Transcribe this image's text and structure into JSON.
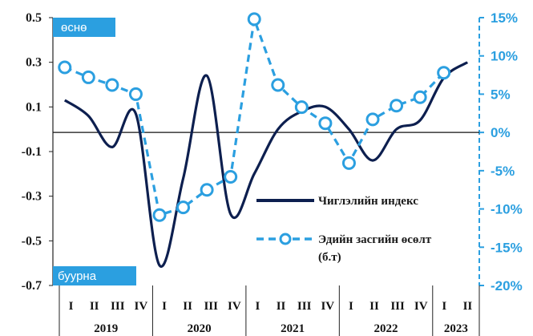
{
  "chart_data": {
    "type": "line",
    "categories": [
      "I",
      "II",
      "III",
      "IV",
      "I",
      "II",
      "III",
      "IV",
      "I",
      "II",
      "III",
      "IV",
      "I",
      "II",
      "III",
      "IV",
      "I",
      "II"
    ],
    "years": [
      {
        "label": "2019",
        "quarters": 4
      },
      {
        "label": "2020",
        "quarters": 4
      },
      {
        "label": "2021",
        "quarters": 4
      },
      {
        "label": "2022",
        "quarters": 4
      },
      {
        "label": "2023",
        "quarters": 2
      }
    ],
    "y_left": {
      "ticks": [
        "0.5",
        "0.3",
        "0.1",
        "-0.1",
        "-0.3",
        "-0.5",
        "-0.7"
      ],
      "ylim": [
        -0.7,
        0.5
      ]
    },
    "y_right": {
      "ticks": [
        "15%",
        "10%",
        "5%",
        "0%",
        "-5%",
        "-10%",
        "-15%",
        "-20%"
      ],
      "ylim": [
        -20,
        15
      ],
      "unit": "%"
    },
    "zone_labels": {
      "top": "өснө",
      "bottom": "буурна"
    },
    "series": [
      {
        "name": "Чиглэлийн индекс",
        "axis": "left",
        "style": "solid",
        "color": "#0d1f4f",
        "values": [
          0.13,
          0.06,
          -0.08,
          0.07,
          -0.61,
          -0.22,
          0.24,
          -0.38,
          -0.2,
          0.0,
          0.08,
          0.1,
          0.0,
          -0.14,
          0.0,
          0.04,
          0.23,
          0.3
        ]
      },
      {
        "name": "Эдийн засгийн өсөлт (б.т)",
        "axis": "right",
        "style": "dashed",
        "color": "#2b9fe0",
        "values": [
          8.5,
          7.2,
          6.2,
          5.0,
          -10.8,
          -9.8,
          -7.5,
          -5.8,
          14.8,
          6.2,
          3.3,
          1.2,
          -4.0,
          1.7,
          3.5,
          4.6,
          7.8,
          null
        ]
      }
    ],
    "legend": [
      {
        "label": "Чиглэлийн индекс"
      },
      {
        "label": "Эдийн засгийн өсөлт",
        "label2": "(б.т)"
      }
    ]
  }
}
